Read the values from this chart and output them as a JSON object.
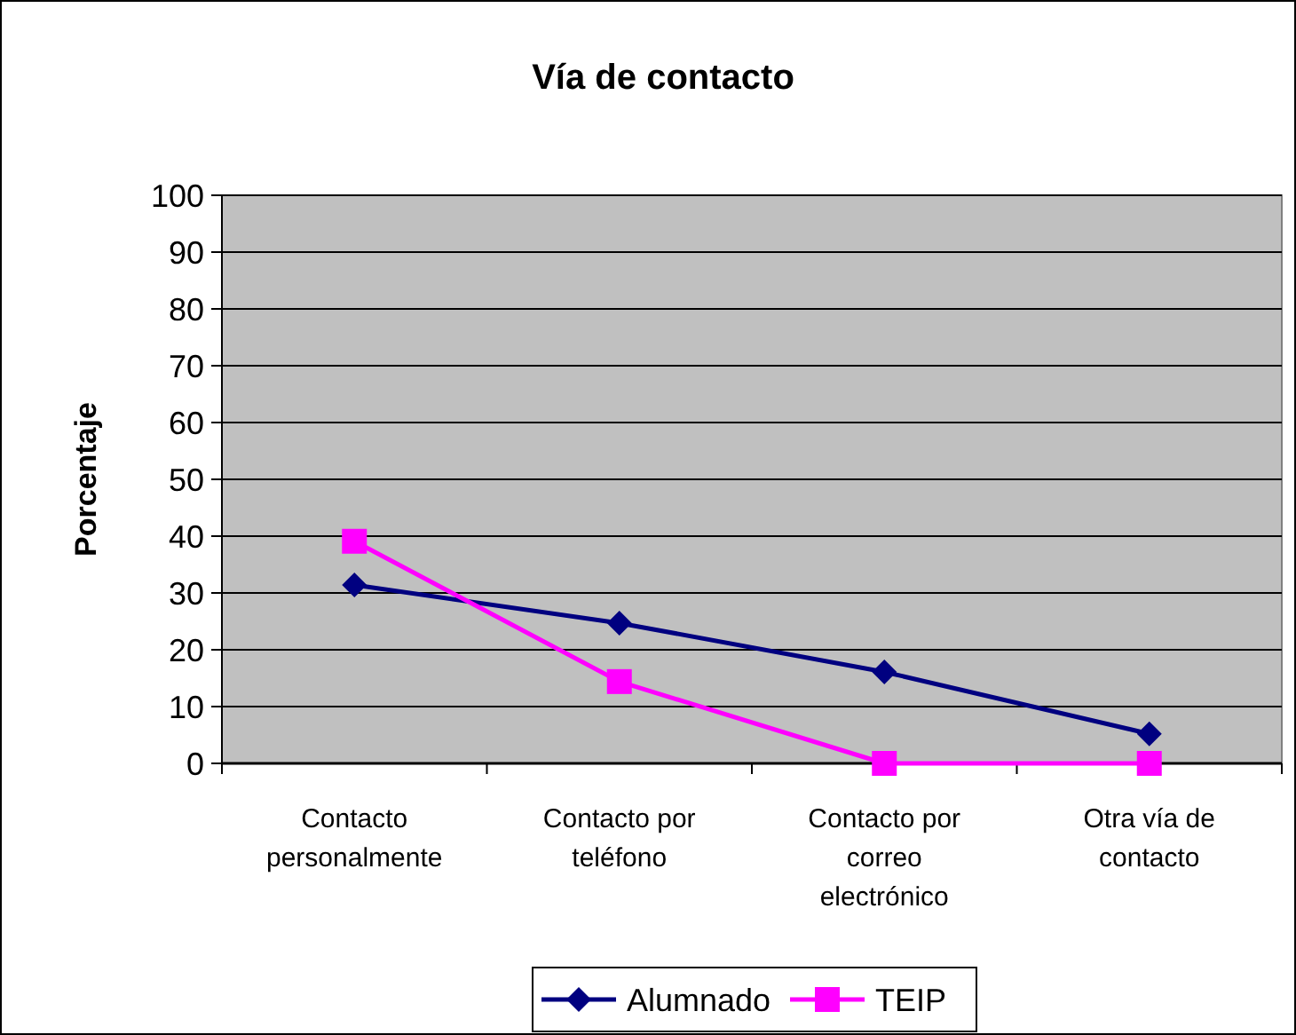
{
  "chart_data": {
    "type": "line",
    "title": "Vía de contacto",
    "ylabel": "Porcentaje",
    "categories": [
      "Contacto personalmente",
      "Contacto por teléfono",
      "Contacto por correo electrónico",
      "Otra vía de contacto"
    ],
    "series": [
      {
        "name": "Alumnado",
        "color": "#000080",
        "marker": "diamond",
        "values": [
          31.4,
          24.7,
          16.1,
          5.2
        ]
      },
      {
        "name": "TEIP",
        "color": "#ff00ff",
        "marker": "square",
        "values": [
          39.1,
          14.4,
          0,
          0
        ]
      }
    ],
    "ylim": [
      0,
      100
    ],
    "yticks": [
      0,
      10,
      20,
      30,
      40,
      50,
      60,
      70,
      80,
      90,
      100
    ],
    "grid": "y",
    "legend": "bottom"
  }
}
